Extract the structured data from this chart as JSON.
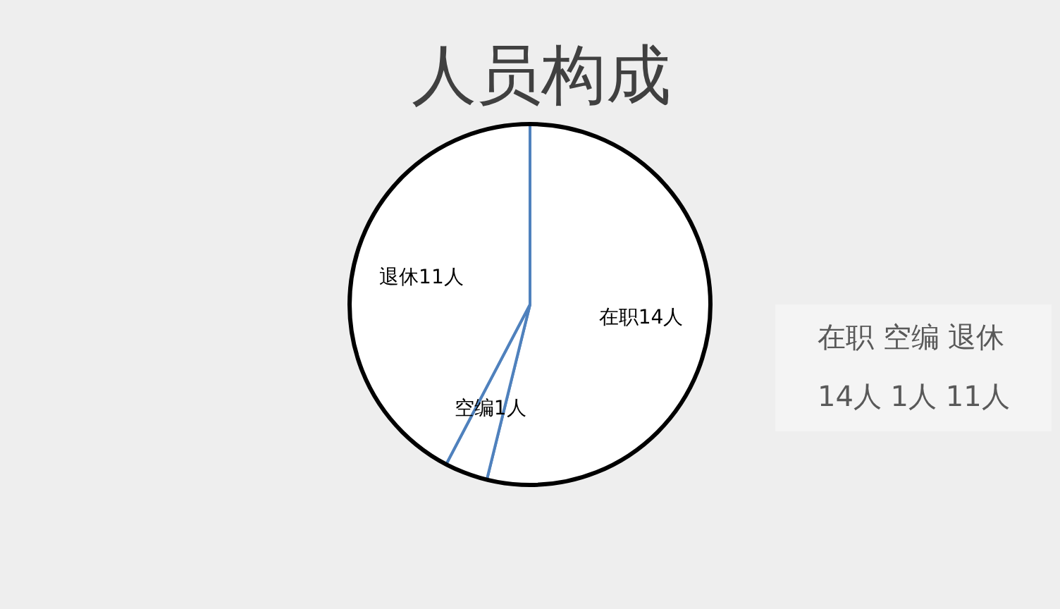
{
  "chart_data": {
    "type": "pie",
    "title": "人员构成",
    "categories": [
      "在职",
      "空编",
      "退休"
    ],
    "values": [
      14,
      1,
      11
    ],
    "colors": [
      "#ffffff",
      "#ffffff",
      "#ffffff"
    ],
    "value_labels": [
      "14人",
      "1人",
      "11人"
    ],
    "annotations": [
      "在职 空编 退休",
      "14人 1人 11人"
    ]
  }
}
